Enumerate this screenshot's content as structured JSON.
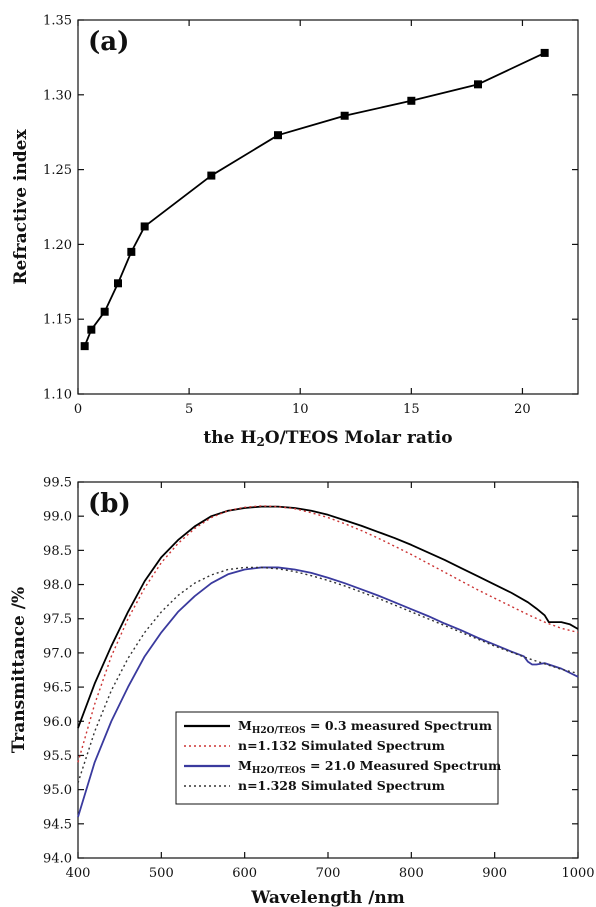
{
  "chart_data": [
    {
      "type": "line",
      "panel_label": "(a)",
      "xlabel": "the H2O/TEOS Molar ratio",
      "ylabel": "Refractive index",
      "xlim": [
        0,
        22.5
      ],
      "ylim": [
        1.1,
        1.35
      ],
      "xticks": [
        0,
        5,
        10,
        15,
        20
      ],
      "yticks": [
        1.1,
        1.15,
        1.2,
        1.25,
        1.3,
        1.35
      ],
      "xtick_labels": [
        "0",
        "5",
        "10",
        "15",
        "20"
      ],
      "ytick_labels": [
        "1.10",
        "1.15",
        "1.20",
        "1.25",
        "1.30",
        "1.35"
      ],
      "grid": false,
      "marker": "square",
      "series": [
        {
          "x": [
            0.3,
            0.6,
            1.2,
            1.8,
            2.4,
            3.0,
            6.0,
            9.0,
            12.0,
            15.0,
            18.0,
            21.0
          ],
          "y": [
            1.132,
            1.143,
            1.155,
            1.174,
            1.195,
            1.212,
            1.246,
            1.273,
            1.286,
            1.296,
            1.307,
            1.328
          ],
          "color": "#000000"
        }
      ]
    },
    {
      "type": "line",
      "panel_label": "(b)",
      "xlabel": "Wavelength /nm",
      "ylabel": "Transmittance /%",
      "xlim": [
        400,
        1000
      ],
      "ylim": [
        94.0,
        99.5
      ],
      "xticks": [
        400,
        500,
        600,
        700,
        800,
        900,
        1000
      ],
      "yticks": [
        94.0,
        94.5,
        95.0,
        95.5,
        96.0,
        96.5,
        97.0,
        97.5,
        98.0,
        98.5,
        99.0,
        99.5
      ],
      "xtick_labels": [
        "400",
        "500",
        "600",
        "700",
        "800",
        "900",
        "1000"
      ],
      "ytick_labels": [
        "94.0",
        "94.5",
        "95.0",
        "95.5",
        "96.0",
        "96.5",
        "97.0",
        "97.5",
        "98.0",
        "98.5",
        "99.0",
        "99.5"
      ],
      "grid": false,
      "legend_position": "bottom-center",
      "series": [
        {
          "name_main": "M",
          "name_sub": "H2O/TEOS",
          "name_rest": " = 0.3 measured Spectrum",
          "color": "#000000",
          "dash": "solid",
          "x": [
            400,
            420,
            440,
            460,
            480,
            500,
            520,
            540,
            560,
            580,
            600,
            620,
            640,
            660,
            680,
            700,
            720,
            740,
            760,
            780,
            800,
            820,
            840,
            860,
            880,
            900,
            920,
            940,
            950,
            960,
            965,
            970,
            980,
            990,
            1000
          ],
          "y": [
            95.9,
            96.55,
            97.1,
            97.6,
            98.05,
            98.4,
            98.65,
            98.85,
            99.0,
            99.08,
            99.12,
            99.14,
            99.14,
            99.12,
            99.08,
            99.02,
            98.94,
            98.86,
            98.77,
            98.68,
            98.58,
            98.47,
            98.36,
            98.24,
            98.12,
            98.0,
            97.88,
            97.74,
            97.65,
            97.55,
            97.45,
            97.45,
            97.45,
            97.42,
            97.35
          ]
        },
        {
          "name_main": "n=1.132 Simulated Spectrum",
          "name_sub": "",
          "name_rest": "",
          "color": "#cc3333",
          "dash": "dotted",
          "x": [
            400,
            420,
            440,
            460,
            480,
            500,
            520,
            540,
            560,
            580,
            600,
            620,
            640,
            660,
            680,
            700,
            720,
            740,
            760,
            780,
            800,
            820,
            840,
            860,
            880,
            900,
            920,
            940,
            960,
            980,
            1000
          ],
          "y": [
            95.4,
            96.25,
            96.95,
            97.5,
            97.95,
            98.32,
            98.6,
            98.82,
            98.98,
            99.08,
            99.13,
            99.15,
            99.14,
            99.11,
            99.05,
            98.98,
            98.89,
            98.79,
            98.68,
            98.56,
            98.44,
            98.31,
            98.18,
            98.05,
            97.92,
            97.8,
            97.68,
            97.56,
            97.45,
            97.36,
            97.3
          ]
        },
        {
          "name_main": "M",
          "name_sub": "H2O/TEOS",
          "name_rest": " = 21.0 Measured Spectrum",
          "color": "#3a3a9e",
          "dash": "solid",
          "x": [
            400,
            420,
            440,
            460,
            480,
            500,
            520,
            540,
            560,
            580,
            600,
            620,
            640,
            660,
            680,
            700,
            720,
            740,
            760,
            780,
            800,
            820,
            840,
            860,
            880,
            900,
            920,
            935,
            940,
            945,
            950,
            960,
            980,
            1000
          ],
          "y": [
            94.6,
            95.4,
            96.0,
            96.5,
            96.95,
            97.3,
            97.6,
            97.83,
            98.02,
            98.15,
            98.22,
            98.25,
            98.25,
            98.22,
            98.17,
            98.1,
            98.02,
            97.93,
            97.84,
            97.74,
            97.64,
            97.54,
            97.43,
            97.33,
            97.22,
            97.12,
            97.02,
            96.95,
            96.87,
            96.83,
            96.83,
            96.85,
            96.77,
            96.65
          ]
        },
        {
          "name_main": "n=1.328 Simulated Spectrum",
          "name_sub": "",
          "name_rest": "",
          "color": "#333333",
          "dash": "dotted",
          "x": [
            400,
            420,
            440,
            460,
            480,
            500,
            520,
            540,
            560,
            580,
            600,
            620,
            640,
            660,
            680,
            700,
            720,
            740,
            760,
            780,
            800,
            820,
            840,
            860,
            880,
            900,
            920,
            940,
            960,
            980,
            1000
          ],
          "y": [
            95.1,
            95.85,
            96.45,
            96.92,
            97.3,
            97.6,
            97.84,
            98.02,
            98.14,
            98.22,
            98.25,
            98.25,
            98.23,
            98.19,
            98.13,
            98.06,
            97.98,
            97.89,
            97.8,
            97.7,
            97.6,
            97.5,
            97.4,
            97.3,
            97.2,
            97.1,
            97.01,
            96.92,
            96.84,
            96.76,
            96.7
          ]
        }
      ]
    }
  ]
}
